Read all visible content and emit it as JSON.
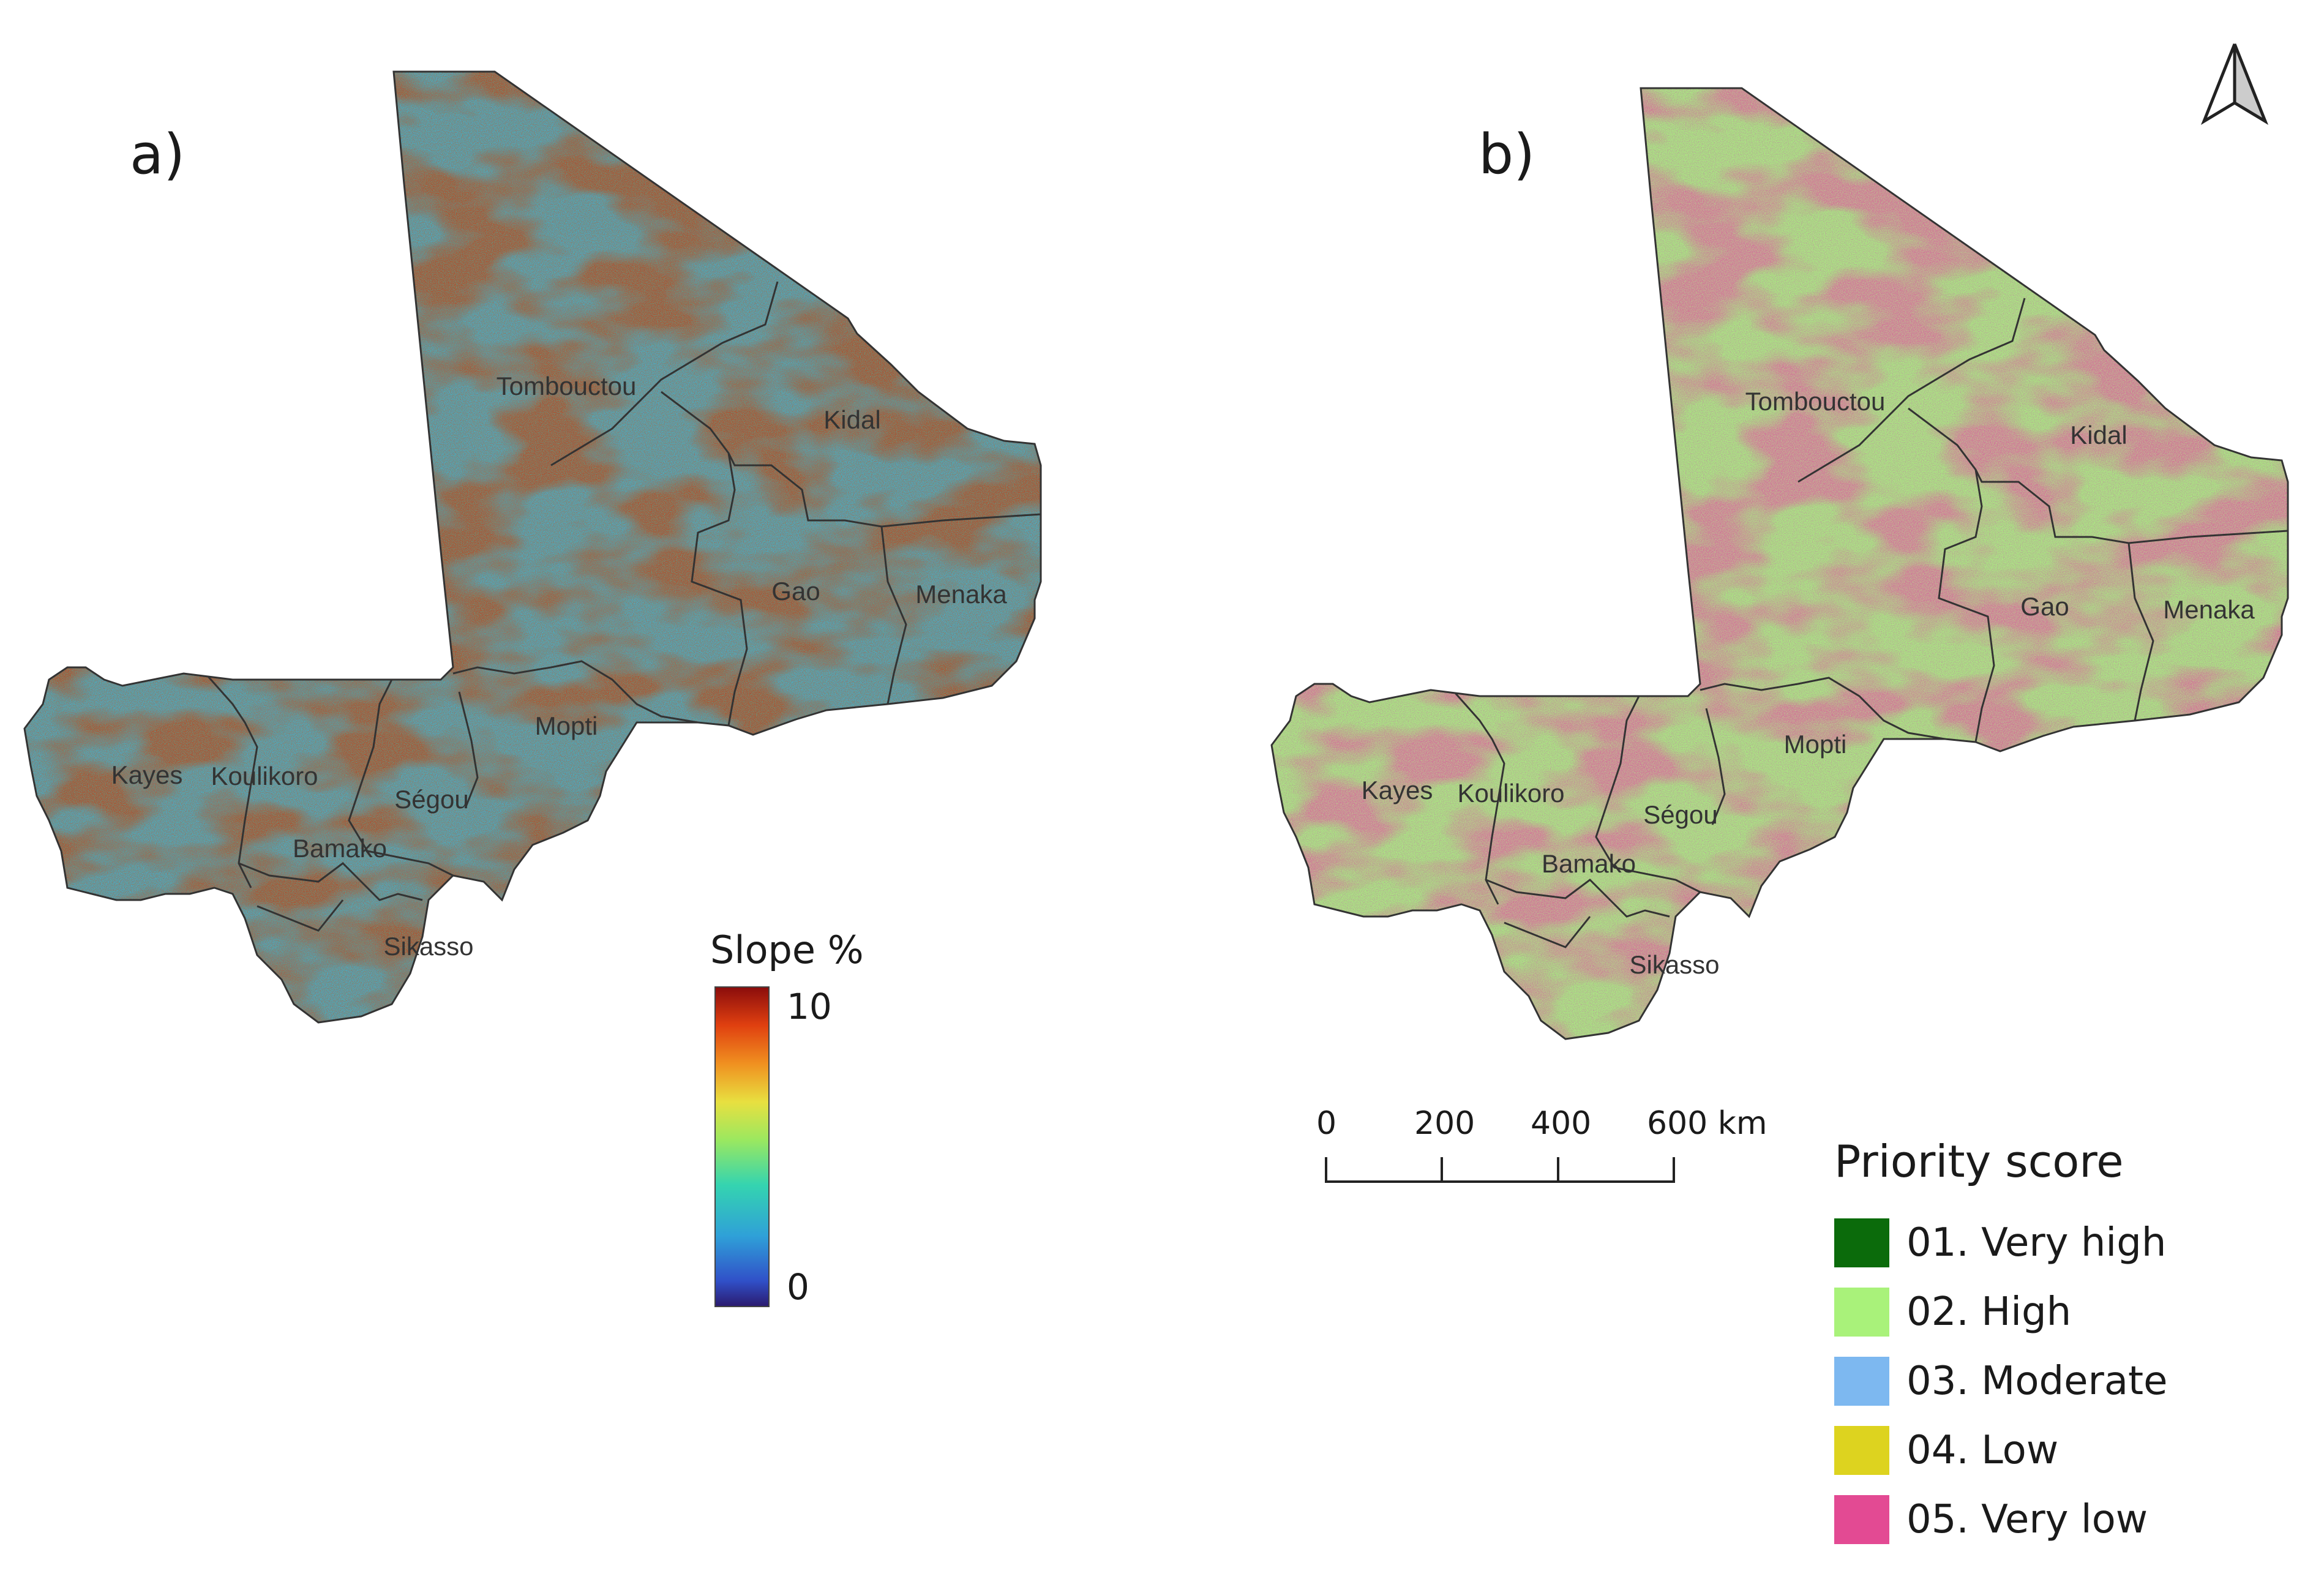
{
  "panels": {
    "a": {
      "label": "a)"
    },
    "b": {
      "label": "b)"
    }
  },
  "regions": [
    "Tombouctou",
    "Kidal",
    "Gao",
    "Menaka",
    "Mopti",
    "Kayes",
    "Koulikoro",
    "Ségou",
    "Bamako",
    "Sikasso"
  ],
  "colorbar": {
    "title": "Slope %",
    "max_label": "10",
    "min_label": "0",
    "stops": [
      "#2b1a6e",
      "#3050c8",
      "#2fa0d8",
      "#34d4b0",
      "#9ae860",
      "#e8e040",
      "#f09020",
      "#e04010",
      "#8a0c0c"
    ]
  },
  "scale_bar": {
    "ticks": [
      "0",
      "200",
      "400",
      "600 km"
    ]
  },
  "legend": {
    "title": "Priority score",
    "items": [
      {
        "label": "01. Very high",
        "color": "#0b6b0b"
      },
      {
        "label": "02. High",
        "color": "#a9f27a"
      },
      {
        "label": "03. Moderate",
        "color": "#7db8f0"
      },
      {
        "label": "04. Low",
        "color": "#ddd31f"
      },
      {
        "label": "05. Very low",
        "color": "#e34a93"
      }
    ]
  },
  "map_style": {
    "slope_base": "#4fa6c6",
    "slope_high": "#b04a22",
    "priority_base": "#a6e27e",
    "priority_low": "#e25a9a",
    "border": "#333333",
    "north_arrow_fill": "#cccccc"
  }
}
